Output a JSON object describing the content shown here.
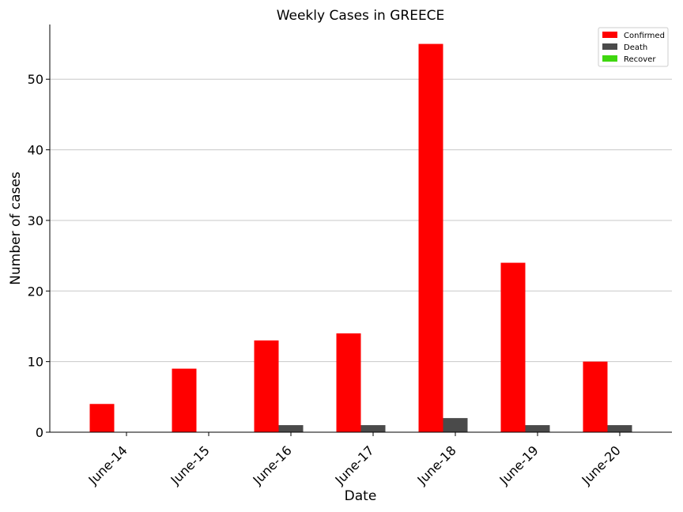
{
  "chart_data": {
    "type": "bar",
    "title": "Weekly Cases in GREECE",
    "xlabel": "Date",
    "ylabel": "Number of cases",
    "categories": [
      "June-14",
      "June-15",
      "June-16",
      "June-17",
      "June-18",
      "June-19",
      "June-20"
    ],
    "series": [
      {
        "name": "Confirmed",
        "color": "#ff0000",
        "values": [
          4,
          9,
          13,
          14,
          55,
          24,
          10
        ]
      },
      {
        "name": "Death",
        "color": "#4a4a4a",
        "values": [
          0,
          0,
          1,
          1,
          2,
          1,
          1
        ]
      },
      {
        "name": "Recover",
        "color": "#3fd70f",
        "values": [
          0,
          0,
          0,
          0,
          0,
          0,
          0
        ]
      }
    ],
    "ylim": [
      0,
      57.75
    ],
    "yticks": [
      0,
      10,
      20,
      30,
      40,
      50
    ],
    "grid": "horizontal",
    "legend_position": "top-right"
  }
}
